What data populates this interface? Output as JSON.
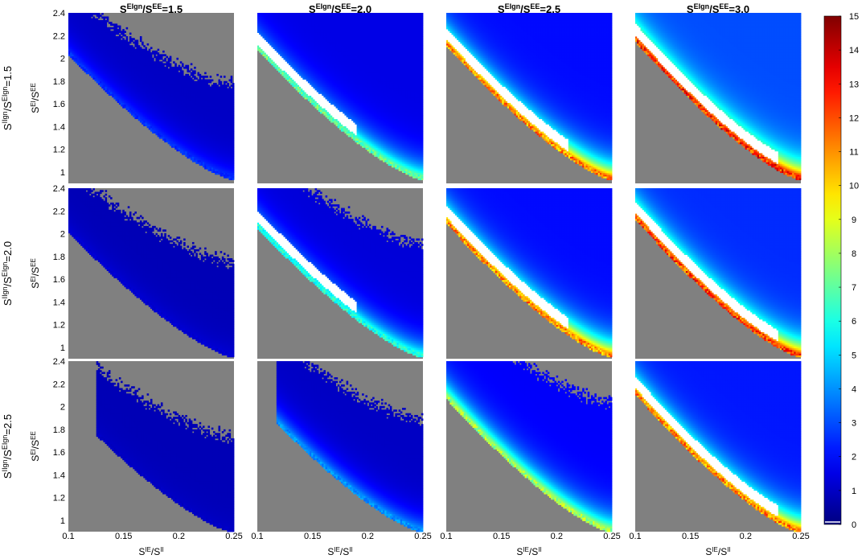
{
  "chart_data": {
    "type": "heatmap",
    "layout": {
      "rows": 3,
      "cols": 4
    },
    "x": {
      "label": "S",
      "label_sup": "IE",
      "label_mid": "/S",
      "label_sup2": "II",
      "ticks": [
        "0.1",
        "0.15",
        "0.2",
        "0.25"
      ],
      "range": [
        0.1,
        0.25
      ]
    },
    "y": {
      "label": "S",
      "label_sup": "EI",
      "label_mid": "/S",
      "label_sup2": "EE",
      "ticks": [
        "1",
        "1.2",
        "1.4",
        "1.6",
        "1.8",
        "2",
        "2.2",
        "2.4"
      ],
      "range": [
        0.9,
        2.4
      ]
    },
    "columns": [
      {
        "pre": "S",
        "sup": "EIgn",
        "mid": "/S",
        "sup2": "EE",
        "post": "=1.5",
        "ratio": 1.5
      },
      {
        "pre": "S",
        "sup": "EIgn",
        "mid": "/S",
        "sup2": "EE",
        "post": "=2.0",
        "ratio": 2.0
      },
      {
        "pre": "S",
        "sup": "EIgn",
        "mid": "/S",
        "sup2": "EE",
        "post": "=2.5",
        "ratio": 2.5
      },
      {
        "pre": "S",
        "sup": "EIgn",
        "mid": "/S",
        "sup2": "EE",
        "post": "=3.0",
        "ratio": 3.0
      }
    ],
    "rows_meta": [
      {
        "pre": "S",
        "sup": "IIgn",
        "mid": "/S",
        "sup2": "EIgn",
        "post": "=1.5",
        "ratio": 1.5
      },
      {
        "pre": "S",
        "sup": "IIgn",
        "mid": "/S",
        "sup2": "EIgn",
        "post": "=2.0",
        "ratio": 2.0
      },
      {
        "pre": "S",
        "sup": "IIgn",
        "mid": "/S",
        "sup2": "EIgn",
        "post": "=2.5",
        "ratio": 2.5
      }
    ],
    "colorbar": {
      "colormap": "jet",
      "range": [
        0,
        15
      ],
      "ticks": [
        "0",
        "1",
        "2",
        "3",
        "4",
        "5",
        "6",
        "7",
        "8",
        "9",
        "10",
        "11",
        "12",
        "13",
        "14",
        "15"
      ]
    },
    "colors": {
      "invalid": "#808080",
      "saturated": "#ffffff"
    },
    "panels": [
      {
        "row": 0,
        "col": 0,
        "edge_value": 2.5,
        "interior_value": 1.0,
        "white_band": false,
        "noisy_outer": true,
        "cutoff_x": 0.0
      },
      {
        "row": 0,
        "col": 1,
        "edge_value": 7.0,
        "interior_value": 1.5,
        "white_band": true,
        "noisy_outer": false,
        "cutoff_x": 0.0
      },
      {
        "row": 0,
        "col": 2,
        "edge_value": 11.0,
        "interior_value": 2.0,
        "white_band": true,
        "noisy_outer": false,
        "cutoff_x": 0.0
      },
      {
        "row": 0,
        "col": 3,
        "edge_value": 12.5,
        "interior_value": 3.0,
        "white_band": true,
        "noisy_outer": false,
        "cutoff_x": 0.0
      },
      {
        "row": 1,
        "col": 0,
        "edge_value": 1.2,
        "interior_value": 0.8,
        "white_band": false,
        "noisy_outer": true,
        "cutoff_x": 0.0
      },
      {
        "row": 1,
        "col": 1,
        "edge_value": 6.0,
        "interior_value": 1.3,
        "white_band": true,
        "noisy_outer": true,
        "cutoff_x": 0.0
      },
      {
        "row": 1,
        "col": 2,
        "edge_value": 11.0,
        "interior_value": 2.0,
        "white_band": true,
        "noisy_outer": false,
        "cutoff_x": 0.0
      },
      {
        "row": 1,
        "col": 3,
        "edge_value": 12.0,
        "interior_value": 2.5,
        "white_band": true,
        "noisy_outer": false,
        "cutoff_x": 0.0
      },
      {
        "row": 2,
        "col": 0,
        "edge_value": 1.0,
        "interior_value": 0.8,
        "white_band": false,
        "noisy_outer": true,
        "cutoff_x": 0.125
      },
      {
        "row": 2,
        "col": 1,
        "edge_value": 4.0,
        "interior_value": 1.0,
        "white_band": false,
        "noisy_outer": true,
        "cutoff_x": 0.118
      },
      {
        "row": 2,
        "col": 2,
        "edge_value": 8.0,
        "interior_value": 1.8,
        "white_band": false,
        "noisy_outer": true,
        "cutoff_x": 0.0
      },
      {
        "row": 2,
        "col": 3,
        "edge_value": 11.0,
        "interior_value": 2.2,
        "white_band": true,
        "noisy_outer": false,
        "cutoff_x": 0.0
      }
    ]
  }
}
